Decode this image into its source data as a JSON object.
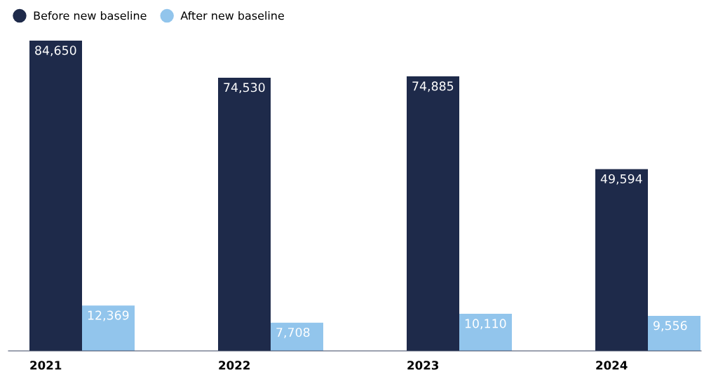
{
  "chart_data": {
    "type": "bar",
    "categories": [
      "2021",
      "2022",
      "2023",
      "2024"
    ],
    "series": [
      {
        "name": "Before new baseline",
        "color": "#1e2a4a",
        "values": [
          84650,
          74530,
          74885,
          49594
        ],
        "value_labels": [
          "84,650",
          "74,530",
          "74,885",
          "49,594"
        ]
      },
      {
        "name": "After new baseline",
        "color": "#92c5ec",
        "values": [
          12369,
          7708,
          10110,
          9556
        ],
        "value_labels": [
          "12,369",
          "7,708",
          "10,110",
          "9,556"
        ]
      }
    ],
    "legend": "top left",
    "grid": false,
    "tick_labels": "x"
  }
}
